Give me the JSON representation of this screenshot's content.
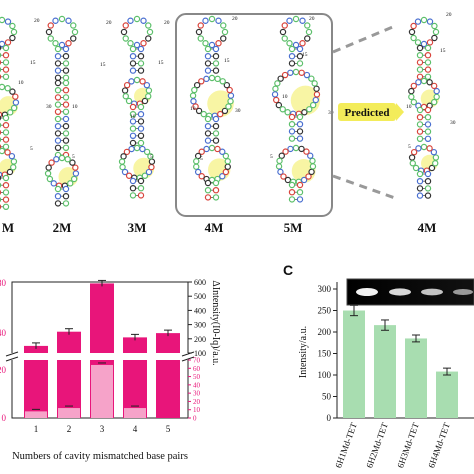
{
  "figure": {
    "panel_c_letter": "C",
    "structures": [
      {
        "label": "M"
      },
      {
        "label": "2M"
      },
      {
        "label": "3M"
      },
      {
        "label": "4M"
      },
      {
        "label": "5M"
      },
      {
        "label": "4M"
      }
    ],
    "structure_numbers": [
      "20",
      "15",
      "25",
      "10",
      "30",
      "5",
      "35"
    ],
    "predicted_label": "Predicted",
    "colors": {
      "pink_bar": "#e8157a",
      "light_pink_bar": "#f6a3c9",
      "green_bar": "#a8ddb0",
      "highlight": "#f3ec5a",
      "node_green": "#5cbf6a",
      "node_blue": "#4a6fd0",
      "node_red": "#d9443c",
      "node_dark": "#333333"
    }
  },
  "chart_data": [
    {
      "type": "bar",
      "title": "",
      "xlabel": "Numbers of  cavity mismatched base pairs",
      "ylabel_right": "ΔIntensity(I0-Iq)/a.u.",
      "categories": [
        "1",
        "2",
        "3",
        "4",
        "5"
      ],
      "axis_left_ticks_upper": [
        "80",
        "40"
      ],
      "axis_left_ticks_lower": [
        "20",
        "0"
      ],
      "axis_right_ticks_upper": [
        "600",
        "500",
        "400",
        "300",
        "200",
        "100"
      ],
      "axis_right_ticks_lower": [
        "70",
        "60",
        "50",
        "40",
        "30",
        "20",
        "10",
        "0"
      ],
      "series": [
        {
          "values": [
            150,
            250,
            590,
            210,
            240
          ]
        },
        {
          "values": [
            8,
            12,
            64,
            12,
            0
          ]
        }
      ]
    },
    {
      "type": "bar",
      "title": "",
      "ylabel": "Intensity/a.u.",
      "ylim": [
        0,
        300
      ],
      "y_ticks": [
        "300",
        "250",
        "200",
        "150",
        "100",
        "50",
        "0"
      ],
      "categories": [
        "6H1Md-TET",
        "6H2Md-TET",
        "6H3Md-TET",
        "6H4Md-TET"
      ],
      "values": [
        250,
        216,
        185,
        108
      ],
      "errors": [
        12,
        12,
        8,
        8
      ]
    }
  ]
}
